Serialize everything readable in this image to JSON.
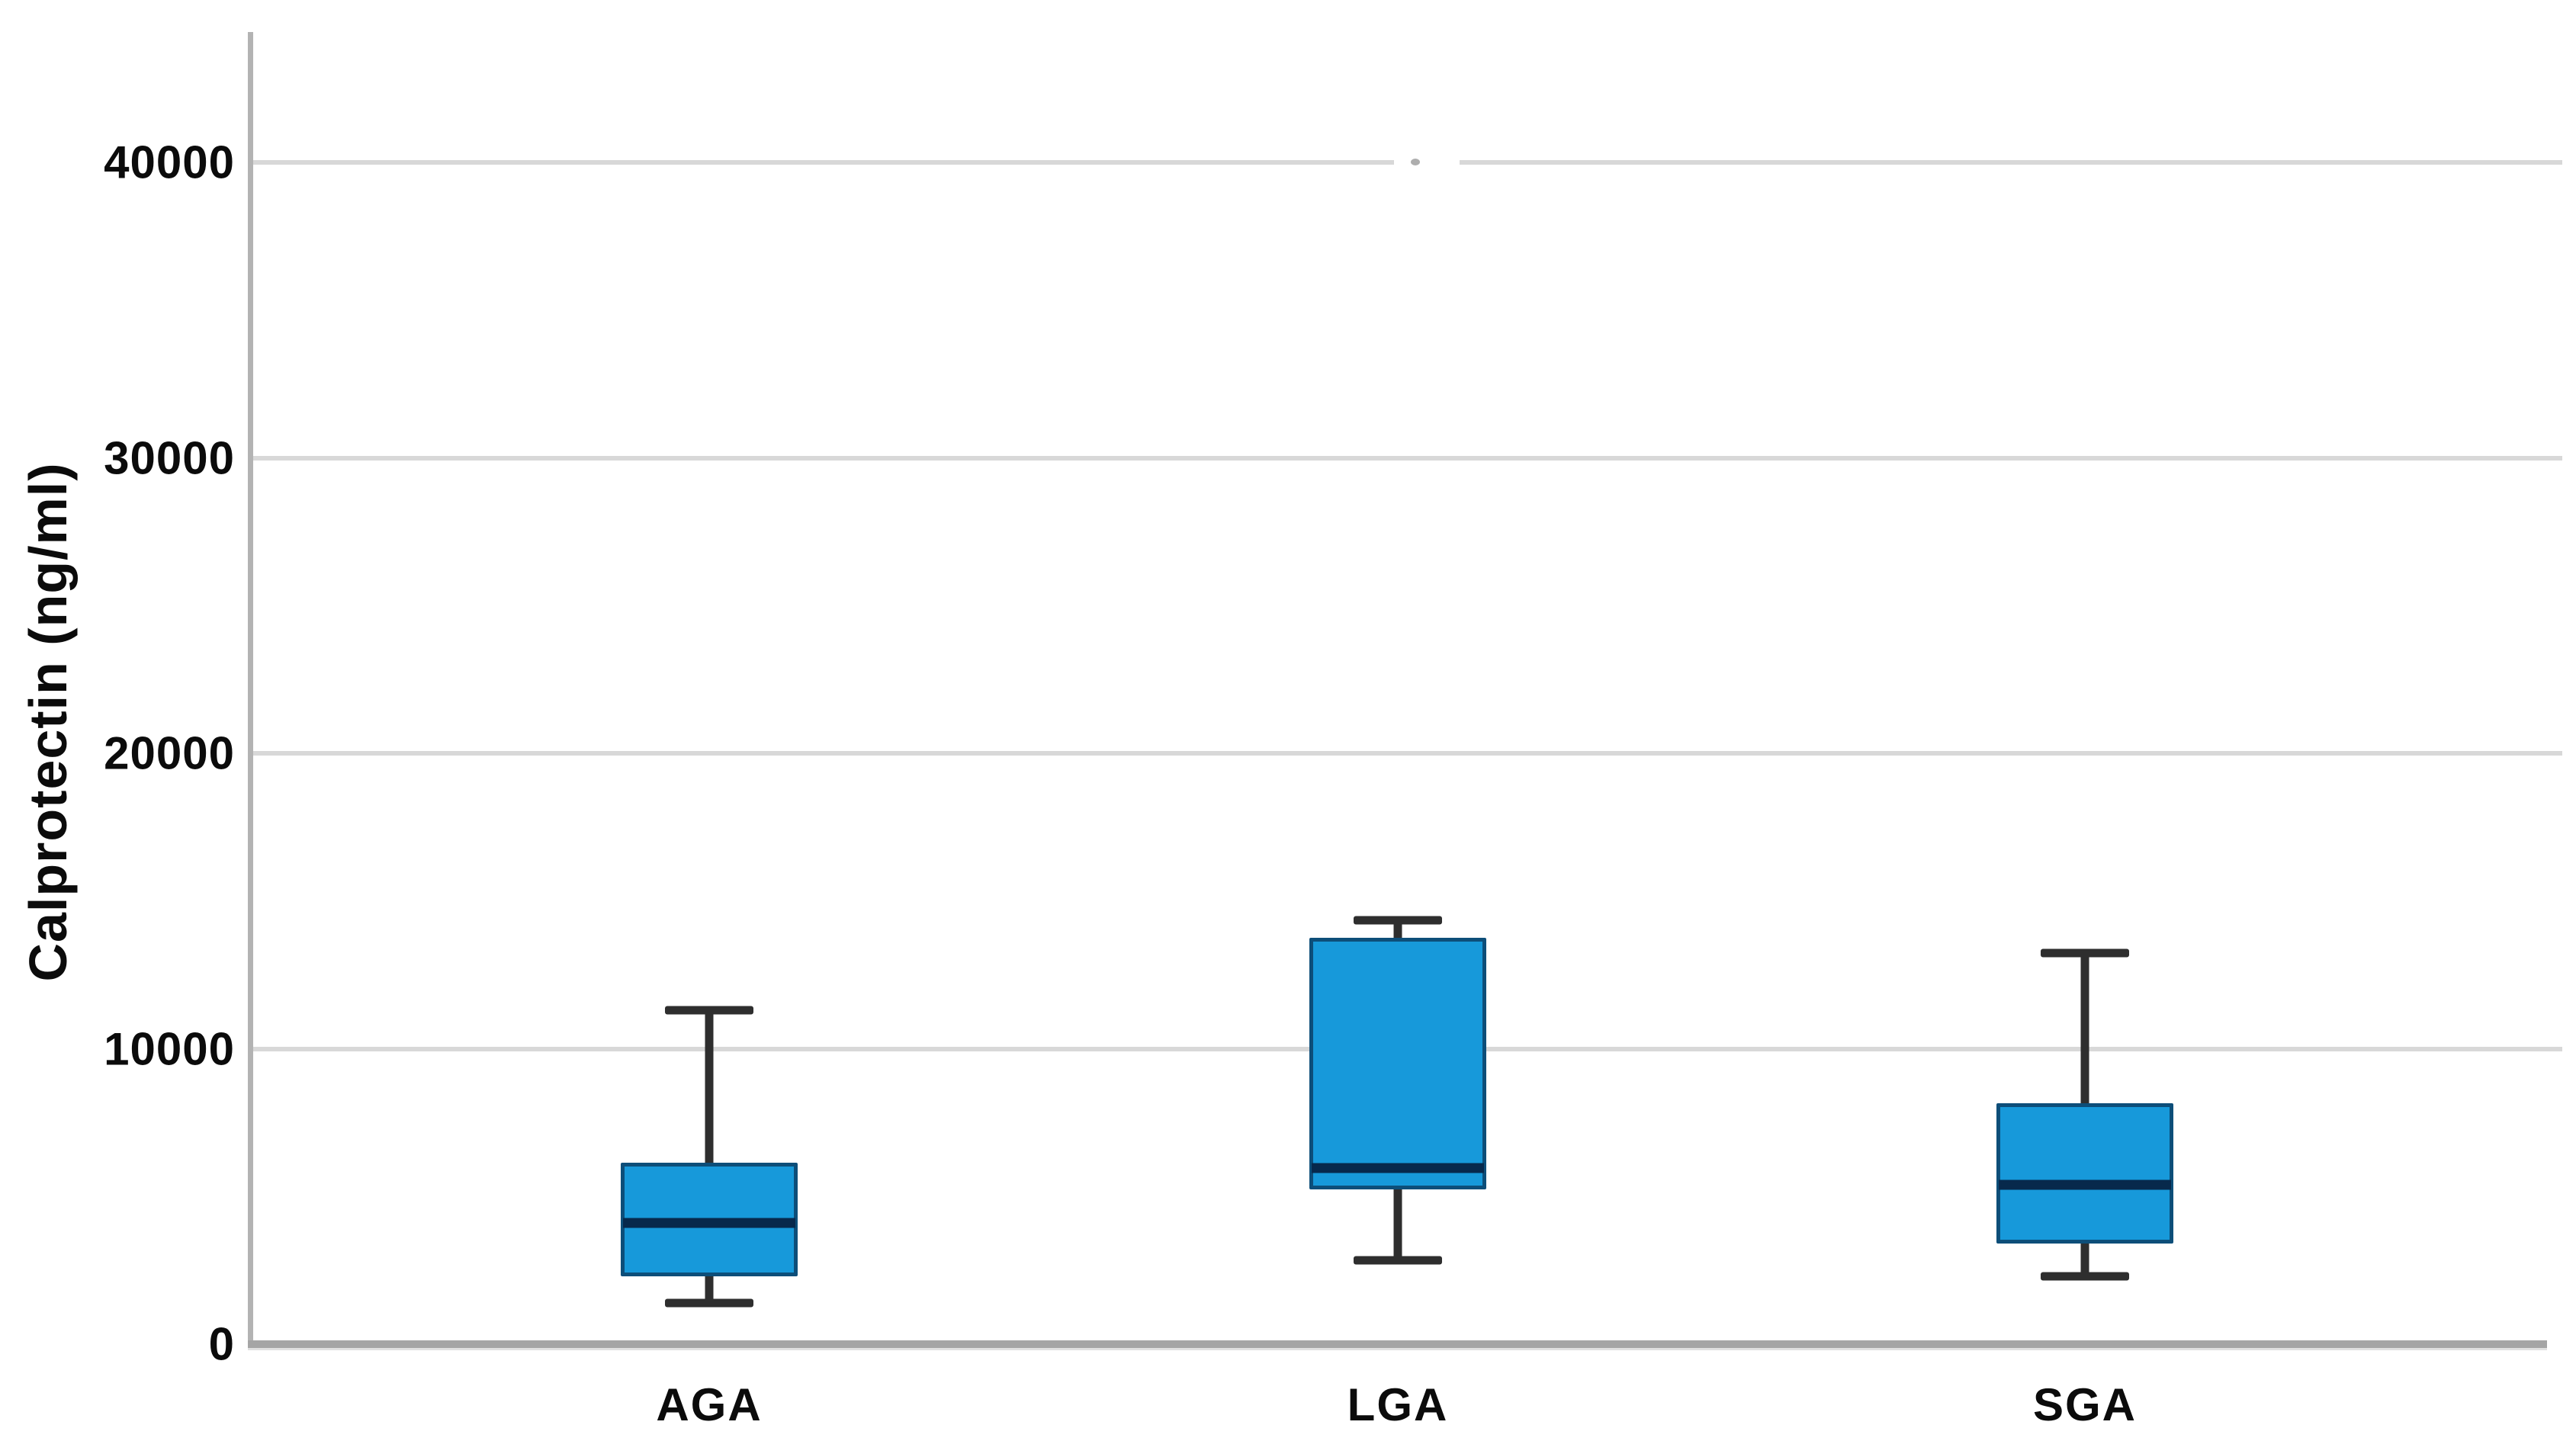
{
  "chart_data": {
    "type": "boxplot",
    "title": "",
    "xlabel": "",
    "ylabel": "Calprotectin (ng/ml)",
    "y_axis": {
      "range": [
        0,
        44400
      ],
      "grid": true,
      "ticks": [
        {
          "value": 0,
          "label": "0"
        },
        {
          "value": 10000,
          "label": "10000"
        },
        {
          "value": 20000,
          "label": "20000"
        },
        {
          "value": 30000,
          "label": "30000"
        },
        {
          "value": 40000,
          "label": "40000"
        }
      ]
    },
    "categories": [
      "AGA",
      "LGA",
      "SGA"
    ],
    "series": [
      {
        "category": "AGA",
        "whisker_low": 1400,
        "q1": 2300,
        "median": 4100,
        "q3": 6150,
        "whisker_high": 11300
      },
      {
        "category": "LGA",
        "whisker_low": 2850,
        "q1": 5250,
        "median": 5950,
        "q3": 13750,
        "whisker_high": 14350
      },
      {
        "category": "SGA",
        "whisker_low": 2300,
        "q1": 3400,
        "median": 5400,
        "q3": 8150,
        "whisker_high": 13250
      }
    ],
    "legend": null
  },
  "colors": {
    "background": "#ffffff",
    "box_fill": "#1799da",
    "box_border": "#0d4e79",
    "median": "#07294c",
    "whisker": "#2e2e2e",
    "gridline": "#d8d8d8",
    "axis": "#a5a5a5",
    "axis_left": "#b3b3b3",
    "text": "#0b0b0b"
  }
}
